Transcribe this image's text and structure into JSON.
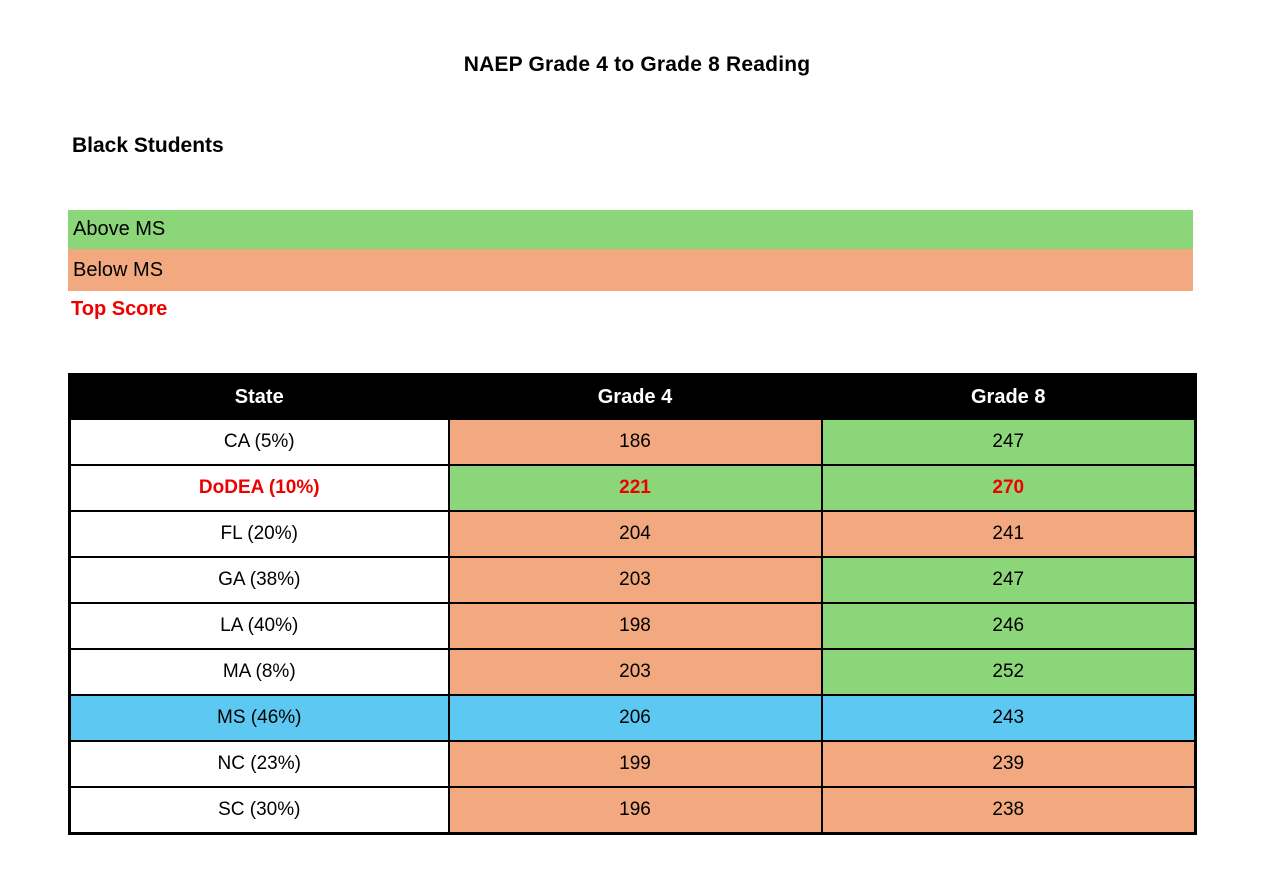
{
  "colors": {
    "above_ms_green": "#8CD67A",
    "below_ms_orange": "#F2A980",
    "ms_blue": "#5DC9F2",
    "top_score_red": "#EE0000",
    "header_bg": "#000000",
    "header_text": "#FFFFFF"
  },
  "legend": {
    "items": [
      {
        "label": "Above MS",
        "tone": "above"
      },
      {
        "label": "Below MS",
        "tone": "below"
      },
      {
        "label": "Top Score",
        "tone": "top"
      }
    ]
  },
  "chart_data": {
    "type": "table",
    "title": "NAEP Grade 4 to Grade 8 Reading",
    "subtitle": "Black Students",
    "columns": [
      "State",
      "Grade 4",
      "Grade 8"
    ],
    "rows": [
      {
        "state": "CA (5%)",
        "grade4": "186",
        "grade8": "247",
        "state_tone": "white",
        "grade4_tone": "below",
        "grade8_tone": "above",
        "emphasis": false
      },
      {
        "state": "DoDEA (10%)",
        "grade4": "221",
        "grade8": "270",
        "state_tone": "white",
        "grade4_tone": "above",
        "grade8_tone": "above",
        "emphasis": true
      },
      {
        "state": "FL (20%)",
        "grade4": "204",
        "grade8": "241",
        "state_tone": "white",
        "grade4_tone": "below",
        "grade8_tone": "below",
        "emphasis": false
      },
      {
        "state": "GA (38%)",
        "grade4": "203",
        "grade8": "247",
        "state_tone": "white",
        "grade4_tone": "below",
        "grade8_tone": "above",
        "emphasis": false
      },
      {
        "state": "LA (40%)",
        "grade4": "198",
        "grade8": "246",
        "state_tone": "white",
        "grade4_tone": "below",
        "grade8_tone": "above",
        "emphasis": false
      },
      {
        "state": "MA (8%)",
        "grade4": "203",
        "grade8": "252",
        "state_tone": "white",
        "grade4_tone": "below",
        "grade8_tone": "above",
        "emphasis": false
      },
      {
        "state": "MS (46%)",
        "grade4": "206",
        "grade8": "243",
        "state_tone": "ms",
        "grade4_tone": "ms",
        "grade8_tone": "ms",
        "emphasis": false
      },
      {
        "state": "NC (23%)",
        "grade4": "199",
        "grade8": "239",
        "state_tone": "white",
        "grade4_tone": "below",
        "grade8_tone": "below",
        "emphasis": false
      },
      {
        "state": "SC (30%)",
        "grade4": "196",
        "grade8": "238",
        "state_tone": "white",
        "grade4_tone": "below",
        "grade8_tone": "below",
        "emphasis": false
      }
    ],
    "legend_labels": [
      "Above MS",
      "Below MS",
      "Top Score"
    ],
    "layout": {
      "grid": true,
      "legend_position": "top-left",
      "header_style": "black-bar"
    }
  }
}
